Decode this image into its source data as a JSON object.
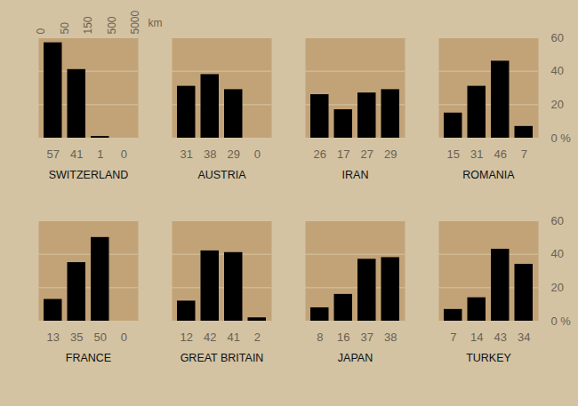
{
  "chart_data": {
    "type": "bar",
    "bins": [
      0,
      50,
      150,
      500,
      5000
    ],
    "x_label": "km",
    "ylim": [
      0,
      60
    ],
    "yticks": [
      {
        "value": 0,
        "label": "0 %"
      },
      20,
      40,
      60
    ],
    "grid": true,
    "data_labels": true,
    "color": "#000000",
    "series": [
      {
        "name": "SWITZERLAND",
        "values": [
          57,
          41,
          1,
          0
        ]
      },
      {
        "name": "AUSTRIA",
        "values": [
          31,
          38,
          29,
          0
        ]
      },
      {
        "name": "IRAN",
        "values": [
          26,
          17,
          27,
          29
        ]
      },
      {
        "name": "ROMANIA",
        "values": [
          15,
          31,
          46,
          7
        ]
      },
      {
        "name": "FRANCE",
        "values": [
          13,
          35,
          50,
          0
        ]
      },
      {
        "name": "GREAT BRITAIN",
        "values": [
          12,
          42,
          41,
          2
        ]
      },
      {
        "name": "JAPAN",
        "values": [
          8,
          16,
          37,
          38
        ]
      },
      {
        "name": "TURKEY",
        "values": [
          7,
          14,
          43,
          34
        ]
      }
    ]
  }
}
